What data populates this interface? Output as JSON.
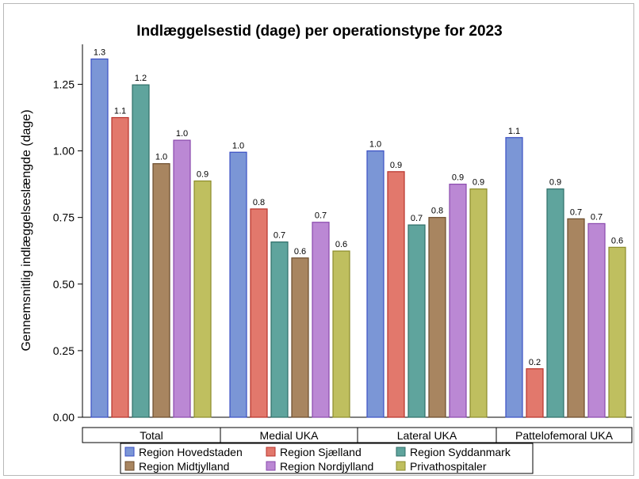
{
  "chart_data": {
    "type": "bar",
    "title": "Indlæggelsestid (dage) per operationstype for 2023",
    "xlabel": "",
    "ylabel": "Gennemsnitlig indlæggelseslængde (dage)",
    "ylim": [
      0,
      1.4
    ],
    "yticks": [
      "0.00",
      "0.25",
      "0.50",
      "0.75",
      "1.00",
      "1.25"
    ],
    "grid": false,
    "legend_position": "bottom",
    "categories": [
      "Total",
      "Medial UKA",
      "Lateral UKA",
      "Pattelofemoral UKA"
    ],
    "series": [
      {
        "name": "Region Hovedstaden",
        "color": "#7b96d6",
        "edge": "#3a4fc4",
        "values": [
          1.345,
          0.995,
          1.0,
          1.05
        ],
        "labels": [
          "1.3",
          "1.0",
          "1.0",
          "1.1"
        ]
      },
      {
        "name": "Region Sjælland",
        "color": "#e2786c",
        "edge": "#b8322b",
        "values": [
          1.125,
          0.782,
          0.922,
          0.182
        ],
        "labels": [
          "1.1",
          "0.8",
          "0.9",
          "0.2"
        ]
      },
      {
        "name": "Region Syddanmark",
        "color": "#5fa49d",
        "edge": "#2f6e68",
        "values": [
          1.248,
          0.658,
          0.722,
          0.857
        ],
        "labels": [
          "1.2",
          "0.7",
          "0.7",
          "0.9"
        ]
      },
      {
        "name": "Region Midtjylland",
        "color": "#a88560",
        "edge": "#6b4b2b",
        "values": [
          0.952,
          0.598,
          0.75,
          0.745
        ],
        "labels": [
          "1.0",
          "0.6",
          "0.8",
          "0.7"
        ]
      },
      {
        "name": "Region Nordjylland",
        "color": "#bb88d4",
        "edge": "#8a4aad",
        "values": [
          1.04,
          0.732,
          0.875,
          0.727
        ],
        "labels": [
          "1.0",
          "0.7",
          "0.9",
          "0.7"
        ]
      },
      {
        "name": "Privathospitaler",
        "color": "#bfbf5f",
        "edge": "#8c8c2c",
        "values": [
          0.887,
          0.624,
          0.857,
          0.638
        ],
        "labels": [
          "0.9",
          "0.6",
          "0.9",
          "0.6"
        ]
      }
    ]
  }
}
